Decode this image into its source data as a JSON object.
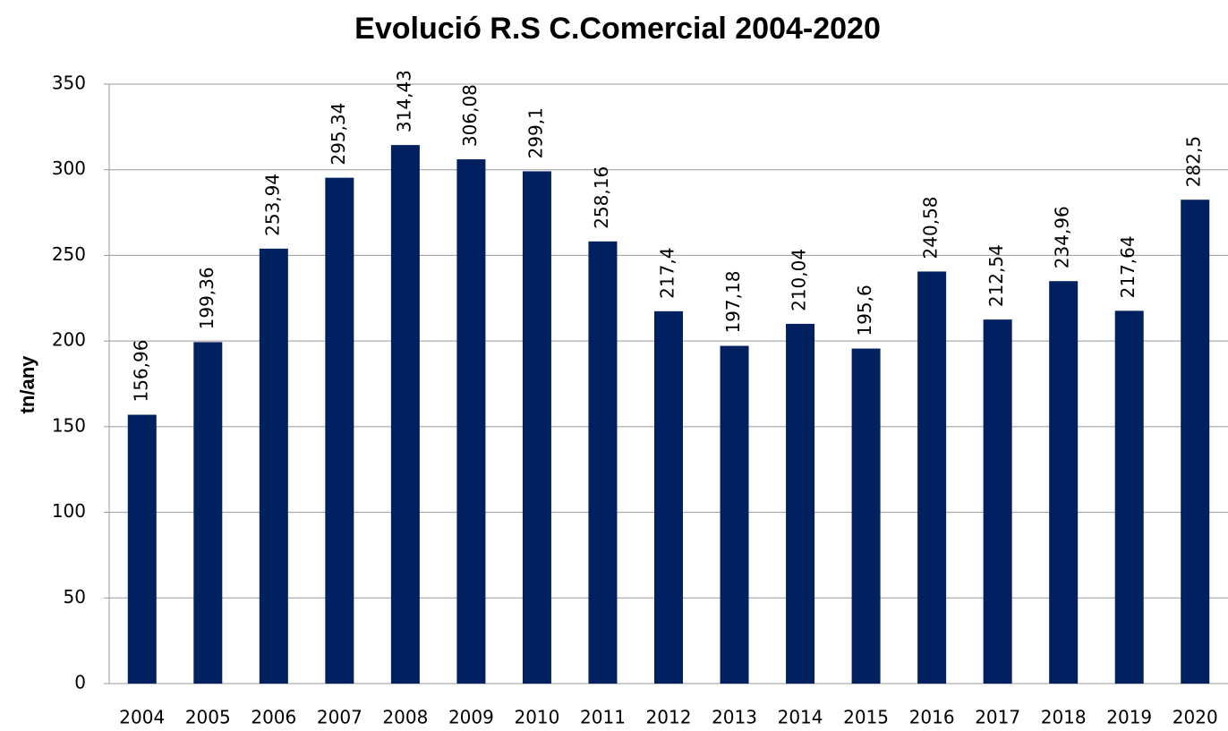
{
  "chart_data": {
    "type": "bar",
    "title": "Evolució R.S C.Comercial 2004-2020",
    "y_label": "tn/any",
    "categories": [
      "2004",
      "2005",
      "2006",
      "2007",
      "2008",
      "2009",
      "2010",
      "2011",
      "2012",
      "2013",
      "2014",
      "2015",
      "2016",
      "2017",
      "2018",
      "2019",
      "2020"
    ],
    "values": [
      156.96,
      199.36,
      253.94,
      295.34,
      314.43,
      306.08,
      299.1,
      258.16,
      217.4,
      197.18,
      210.04,
      195.6,
      240.58,
      212.54,
      234.96,
      217.64,
      282.5
    ],
    "value_labels": [
      "156,96",
      "199,36",
      "253,94",
      "295,34",
      "314,43",
      "306,08",
      "299,1",
      "258,16",
      "217,4",
      "197,18",
      "210,04",
      "195,6",
      "240,58",
      "212,54",
      "234,96",
      "217,64",
      "282,5"
    ],
    "color": "#002060",
    "ylim": [
      0,
      350
    ],
    "yticks": [
      0,
      50,
      100,
      150,
      200,
      250,
      300,
      350
    ],
    "grid": true
  }
}
